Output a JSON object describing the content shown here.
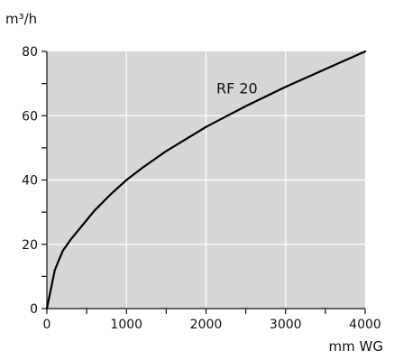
{
  "chart_data": {
    "type": "line",
    "title": "",
    "xlabel": "mm WG",
    "ylabel": "m³/h",
    "xlim": [
      0,
      4000
    ],
    "ylim": [
      0,
      80
    ],
    "x_ticks": [
      0,
      1000,
      2000,
      3000,
      4000
    ],
    "x_tick_labels": [
      "0",
      "1000",
      "2000",
      "3000",
      "4000"
    ],
    "y_ticks": [
      0,
      20,
      40,
      60,
      80
    ],
    "y_tick_labels": [
      "0",
      "20",
      "40",
      "60",
      "80"
    ],
    "grid": true,
    "legend": "none",
    "series": [
      {
        "name": "RF 20",
        "x": [
          0,
          50,
          100,
          150,
          200,
          300,
          400,
          500,
          600,
          800,
          1000,
          1200,
          1500,
          2000,
          2500,
          3000,
          3500,
          4000
        ],
        "y": [
          0,
          6,
          12,
          15,
          18,
          21.5,
          24.5,
          27.5,
          30.5,
          35.5,
          40,
          43.8,
          49,
          56.5,
          63,
          69,
          74.5,
          80
        ]
      }
    ],
    "colors": {
      "plot_background": "#d6d6d6",
      "grid": "#ffffff",
      "line": "#000000",
      "text": "#111111"
    }
  }
}
